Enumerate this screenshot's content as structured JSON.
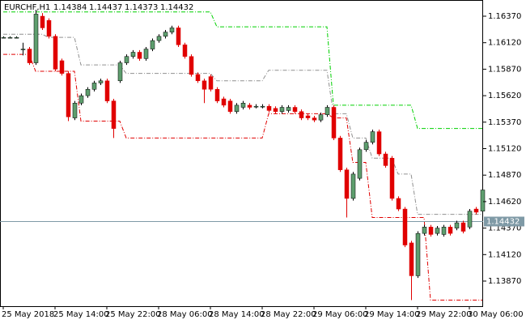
{
  "chart_data": {
    "type": "candlestick",
    "title": "EURCHF,H1",
    "quote": [
      1.14384,
      1.14437,
      1.14373,
      1.14432
    ],
    "categories": [
      "25 May 2018",
      null,
      null,
      null,
      null,
      null,
      null,
      null,
      "25 May 14:00",
      null,
      null,
      null,
      null,
      null,
      null,
      null,
      "25 May 22:00",
      null,
      null,
      null,
      null,
      null,
      null,
      null,
      "28 May 06:00",
      null,
      null,
      null,
      null,
      null,
      null,
      null,
      "28 May 14:00",
      null,
      null,
      null,
      null,
      null,
      null,
      null,
      "28 May 22:00",
      null,
      null,
      null,
      null,
      null,
      null,
      null,
      "29 May 06:00",
      null,
      null,
      null,
      null,
      null,
      null,
      null,
      "29 May 14:00",
      null,
      null,
      null,
      null,
      null,
      null,
      null,
      "29 May 22:00",
      null,
      null,
      null,
      null,
      null,
      null,
      null,
      "30 May 06:00",
      null,
      null
    ],
    "open": [
      1.1617,
      1.1617,
      1.1617,
      1.1606,
      1.1606,
      1.1593,
      1.1637,
      1.1633,
      1.1618,
      1.1595,
      1.1583,
      1.1541,
      1.1555,
      1.1562,
      1.1568,
      1.1574,
      1.1576,
      1.1557,
      1.1576,
      1.1593,
      1.1599,
      1.1603,
      1.1597,
      1.1606,
      1.1614,
      1.1618,
      1.1622,
      1.1626,
      1.161,
      1.1599,
      1.1582,
      1.1576,
      1.158,
      1.1568,
      1.1559,
      1.1557,
      1.1547,
      1.1551,
      1.1553,
      1.1552,
      1.1552,
      1.1552,
      1.155,
      1.1547,
      1.1548,
      1.1551,
      1.1547,
      1.1543,
      1.1541,
      1.1539,
      1.1544,
      1.1551,
      1.1522,
      1.1492,
      1.1465,
      1.1484,
      1.1511,
      1.1518,
      1.1528,
      1.1507,
      1.1503,
      1.1465,
      1.1455,
      1.1423,
      1.1392,
      1.1432,
      1.1438,
      1.1432,
      1.1431,
      1.1438,
      1.1437,
      1.1442,
      1.1438,
      1.1455,
      1.1453
    ],
    "high": [
      1.1618,
      1.1618,
      1.1618,
      1.1612,
      1.1608,
      1.1643,
      1.164,
      1.1635,
      1.162,
      1.1597,
      1.1585,
      1.1557,
      1.1564,
      1.157,
      1.1576,
      1.1578,
      1.1578,
      1.1559,
      1.1595,
      1.1601,
      1.1605,
      1.1605,
      1.1608,
      1.1616,
      1.162,
      1.1624,
      1.1628,
      1.1628,
      1.1612,
      1.1601,
      1.1584,
      1.1578,
      1.1582,
      1.157,
      1.1561,
      1.1559,
      1.1555,
      1.1557,
      1.1555,
      1.1554,
      1.1554,
      1.1554,
      1.1552,
      1.1553,
      1.1553,
      1.1553,
      1.1549,
      1.1545,
      1.1543,
      1.1546,
      1.1553,
      1.1553,
      1.1524,
      1.1494,
      1.149,
      1.1513,
      1.152,
      1.153,
      1.153,
      1.1509,
      1.1505,
      1.1467,
      1.1457,
      1.1425,
      1.1434,
      1.144,
      1.144,
      1.1439,
      1.144,
      1.144,
      1.1444,
      1.1444,
      1.1455,
      1.1457,
      1.1478
    ],
    "low": [
      1.1616,
      1.1616,
      1.1616,
      1.16,
      1.1591,
      1.1591,
      1.1624,
      1.1616,
      1.1585,
      1.1581,
      1.1538,
      1.1539,
      1.1553,
      1.156,
      1.1566,
      1.1572,
      1.1555,
      1.1522,
      1.1574,
      1.1591,
      1.1597,
      1.1595,
      1.1595,
      1.1604,
      1.1612,
      1.1616,
      1.162,
      1.1608,
      1.1597,
      1.158,
      1.1574,
      1.1555,
      1.1566,
      1.1555,
      1.1551,
      1.1545,
      1.1545,
      1.1549,
      1.1549,
      1.155,
      1.155,
      1.1546,
      1.1545,
      1.1545,
      1.1546,
      1.1545,
      1.1539,
      1.1539,
      1.1537,
      1.1537,
      1.1542,
      1.152,
      1.149,
      1.1447,
      1.1463,
      1.1482,
      1.1509,
      1.1516,
      1.1505,
      1.1494,
      1.1463,
      1.1453,
      1.1419,
      1.1369,
      1.139,
      1.143,
      1.1429,
      1.143,
      1.1429,
      1.143,
      1.1435,
      1.1432,
      1.1436,
      1.145,
      1.1451
    ],
    "close": [
      1.1617,
      1.1617,
      1.1617,
      1.1606,
      1.1593,
      1.1639,
      1.1626,
      1.1618,
      1.1587,
      1.1583,
      1.1542,
      1.1555,
      1.1562,
      1.1568,
      1.1574,
      1.1576,
      1.1557,
      1.1531,
      1.1593,
      1.1599,
      1.1603,
      1.1597,
      1.1606,
      1.1614,
      1.1618,
      1.1622,
      1.1626,
      1.161,
      1.1599,
      1.1582,
      1.1576,
      1.1568,
      1.1568,
      1.1557,
      1.1553,
      1.1547,
      1.1553,
      1.1555,
      1.1551,
      1.1552,
      1.1552,
      1.1548,
      1.1547,
      1.1551,
      1.1551,
      1.1547,
      1.1541,
      1.1541,
      1.1539,
      1.1544,
      1.1551,
      1.1522,
      1.1492,
      1.1465,
      1.1488,
      1.1511,
      1.1518,
      1.1528,
      1.1507,
      1.1496,
      1.1465,
      1.1455,
      1.1421,
      1.1392,
      1.1432,
      1.1438,
      1.1431,
      1.1437,
      1.1438,
      1.1432,
      1.1442,
      1.1434,
      1.1453,
      1.1452,
      1.1473
    ],
    "up_color": "#5e9e6e",
    "down_color": "#e00000",
    "series": [
      {
        "color": "#00d000",
        "values": [
          1.1641,
          1.1641,
          1.1641,
          1.1641,
          1.1641,
          1.1641,
          1.1641,
          1.1641,
          1.1641,
          1.1641,
          1.1641,
          1.1641,
          1.1641,
          1.1641,
          1.1641,
          1.1641,
          1.1641,
          1.1641,
          1.1641,
          1.1641,
          1.1641,
          1.1641,
          1.1641,
          1.1641,
          1.1641,
          1.1641,
          1.1641,
          1.1641,
          1.1641,
          1.1641,
          1.1641,
          1.1641,
          1.1641,
          1.1627,
          1.1627,
          1.1627,
          1.1627,
          1.1627,
          1.1627,
          1.1627,
          1.1627,
          1.1627,
          1.1627,
          1.1627,
          1.1627,
          1.1627,
          1.1627,
          1.1627,
          1.1627,
          1.1627,
          1.1627,
          1.1553,
          1.1553,
          1.1553,
          1.1553,
          1.1553,
          1.1553,
          1.1553,
          1.1553,
          1.1553,
          1.1553,
          1.1553,
          1.1553,
          1.1553,
          1.1531,
          1.1531,
          1.1531,
          1.1531,
          1.1531,
          1.1531,
          1.1531,
          1.1531,
          1.1531,
          1.1531,
          1.1531
        ]
      },
      {
        "color": "#909090",
        "values": [
          1.162,
          1.162,
          1.162,
          1.162,
          1.162,
          1.162,
          1.162,
          1.1617,
          1.1617,
          1.1617,
          1.1617,
          1.1617,
          1.1591,
          1.1591,
          1.1591,
          1.1591,
          1.1591,
          1.1591,
          1.1591,
          1.1583,
          1.1583,
          1.1583,
          1.1583,
          1.1583,
          1.1583,
          1.1583,
          1.1583,
          1.1583,
          1.1583,
          1.1583,
          1.1583,
          1.1583,
          1.1583,
          1.1576,
          1.1576,
          1.1576,
          1.1576,
          1.1576,
          1.1576,
          1.1576,
          1.1576,
          1.1586,
          1.1586,
          1.1586,
          1.1586,
          1.1586,
          1.1586,
          1.1586,
          1.1586,
          1.1586,
          1.1586,
          1.1545,
          1.1545,
          1.1545,
          1.1522,
          1.1522,
          1.1522,
          1.1503,
          1.1503,
          1.1503,
          1.1503,
          1.1488,
          1.1488,
          1.1488,
          1.145,
          1.145,
          1.145,
          1.145,
          1.145,
          1.145,
          1.145,
          1.145,
          1.145,
          1.145,
          1.145
        ]
      },
      {
        "color": "#e00000",
        "values": [
          1.1601,
          1.1601,
          1.1601,
          1.1601,
          1.1601,
          1.1585,
          1.1585,
          1.1585,
          1.1585,
          1.1585,
          1.1585,
          1.1585,
          1.1538,
          1.1538,
          1.1538,
          1.1538,
          1.1538,
          1.1538,
          1.1538,
          1.1522,
          1.1522,
          1.1522,
          1.1522,
          1.1522,
          1.1522,
          1.1522,
          1.1522,
          1.1522,
          1.1522,
          1.1522,
          1.1522,
          1.1522,
          1.1522,
          1.1522,
          1.1522,
          1.1522,
          1.1522,
          1.1522,
          1.1522,
          1.1522,
          1.1522,
          1.1545,
          1.1545,
          1.1545,
          1.1545,
          1.1545,
          1.1545,
          1.1545,
          1.1545,
          1.1545,
          1.1545,
          1.1541,
          1.1541,
          1.1541,
          1.1499,
          1.1499,
          1.1499,
          1.1447,
          1.1447,
          1.1447,
          1.1447,
          1.1447,
          1.1447,
          1.1447,
          1.1447,
          1.1447,
          1.1369,
          1.1369,
          1.1369,
          1.1369,
          1.1369,
          1.1369,
          1.1369,
          1.1369,
          1.1369
        ]
      }
    ],
    "price_line_color": "#7f9aa6",
    "ylim": [
      1.13633,
      1.16523
    ],
    "yticks": [
      {
        "value": 1.1637,
        "label": "1.16370"
      },
      {
        "value": 1.1612,
        "label": "1.16120"
      },
      {
        "value": 1.1587,
        "label": "1.15870"
      },
      {
        "value": 1.1562,
        "label": "1.15620"
      },
      {
        "value": 1.1537,
        "label": "1.15370"
      },
      {
        "value": 1.1512,
        "label": "1.15120"
      },
      {
        "value": 1.1487,
        "label": "1.14870"
      },
      {
        "value": 1.1462,
        "label": "1.14620"
      },
      {
        "value": 1.1437,
        "label": "1.14370"
      },
      {
        "value": 1.1412,
        "label": "1.14120"
      },
      {
        "value": 1.1387,
        "label": "1.13870"
      }
    ]
  }
}
